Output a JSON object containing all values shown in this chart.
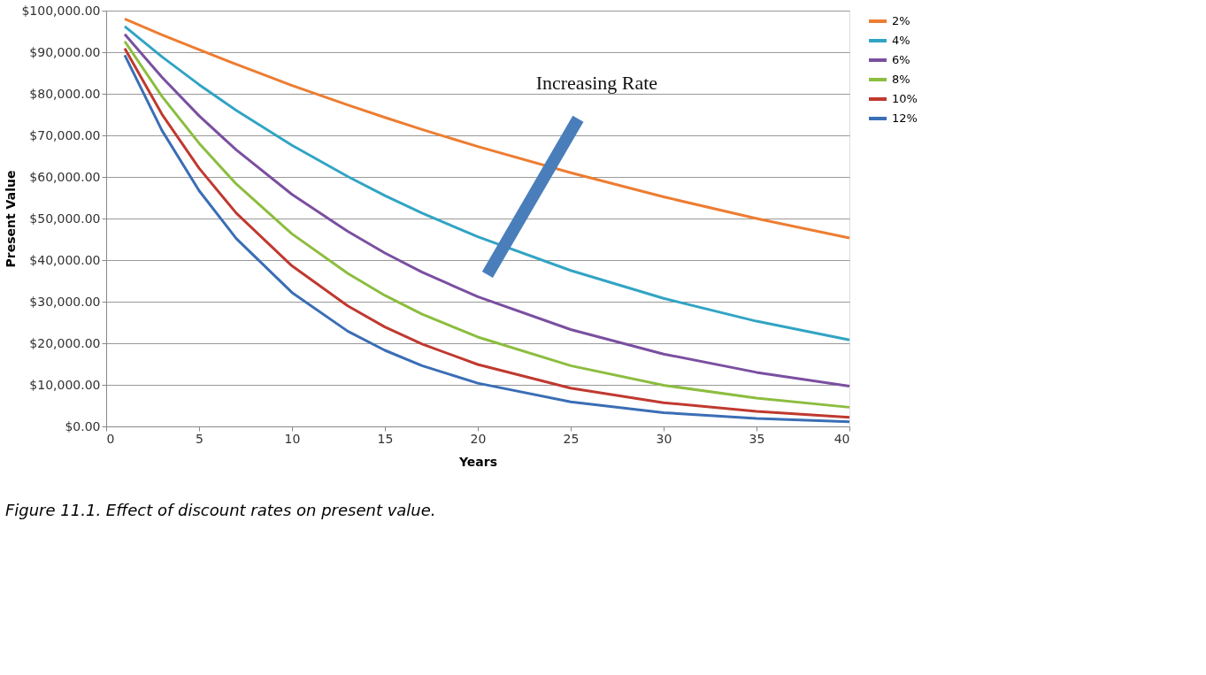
{
  "chart_data": {
    "type": "line",
    "xlabel": "Years",
    "ylabel": "Present Value",
    "annotations": [
      "Increasing Rate",
      "Figure 11.1. Effect of discount rates on present value."
    ],
    "x": [
      1,
      3,
      5,
      7,
      10,
      13,
      15,
      17,
      20,
      25,
      30,
      35,
      40
    ],
    "series": [
      {
        "name": "2%",
        "color": "#ed7d31",
        "values": [
          98000,
          94200,
          90600,
          87100,
          82000,
          77300,
          74300,
          71400,
          67300,
          61000,
          55200,
          50000,
          45300
        ]
      },
      {
        "name": "4%",
        "color": "#31a4c4",
        "values": [
          96200,
          88900,
          82200,
          76000,
          67600,
          60100,
          55500,
          51300,
          45600,
          37500,
          30800,
          25300,
          20800
        ]
      },
      {
        "name": "6%",
        "color": "#7a4fa0",
        "values": [
          94300,
          84000,
          74700,
          66500,
          55800,
          46900,
          41700,
          37100,
          31200,
          23300,
          17400,
          13000,
          9700
        ]
      },
      {
        "name": "8%",
        "color": "#8cbd3f",
        "values": [
          92600,
          79400,
          68100,
          58300,
          46300,
          36800,
          31500,
          27000,
          21500,
          14600,
          9900,
          6800,
          4600
        ]
      },
      {
        "name": "10%",
        "color": "#c0392f",
        "values": [
          90900,
          75100,
          62100,
          51300,
          38600,
          29000,
          23900,
          19800,
          14900,
          9200,
          5700,
          3600,
          2200
        ]
      },
      {
        "name": "12%",
        "color": "#3a6eb5",
        "values": [
          89300,
          71200,
          56700,
          45200,
          32200,
          22900,
          18300,
          14600,
          10400,
          5900,
          3300,
          1900,
          1100
        ]
      }
    ],
    "xlim": [
      0,
      40
    ],
    "xticks": [
      0,
      5,
      10,
      15,
      20,
      25,
      30,
      35,
      40
    ],
    "ylim": [
      0,
      100000
    ],
    "yticks": [
      {
        "value": 0,
        "label": "$0.00"
      },
      {
        "value": 10000,
        "label": "$10,000.00"
      },
      {
        "value": 20000,
        "label": "$20,000.00"
      },
      {
        "value": 30000,
        "label": "$30,000.00"
      },
      {
        "value": 40000,
        "label": "$40,000.00"
      },
      {
        "value": 50000,
        "label": "$50,000.00"
      },
      {
        "value": 60000,
        "label": "$60,000.00"
      },
      {
        "value": 70000,
        "label": "$70,000.00"
      },
      {
        "value": 80000,
        "label": "$80,000.00"
      },
      {
        "value": 90000,
        "label": "$90,000.00"
      },
      {
        "value": 100000,
        "label": "$100,000.00"
      }
    ],
    "grid": "y",
    "legend": "right",
    "marker": "none",
    "line_style": "solid"
  }
}
